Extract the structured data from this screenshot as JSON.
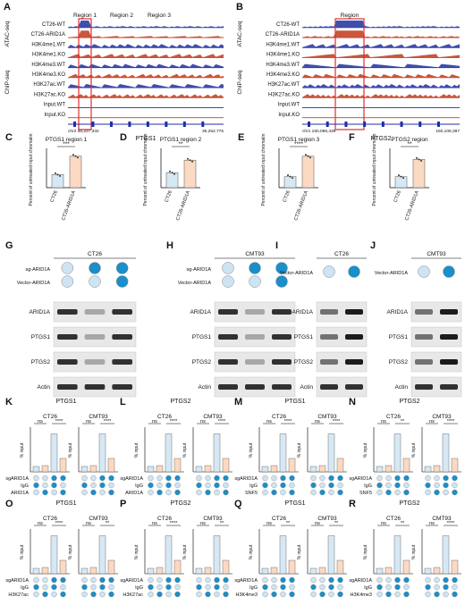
{
  "panels": {
    "A": {
      "letter": "A",
      "group_atac": "ATAC-seq",
      "group_chip": "ChIP-seq",
      "tracks": [
        "CT26-WT",
        "CT26-ARID1A",
        "H3K4me1.WT",
        "H3K4me1.KO",
        "H3K4me3.WT",
        "H3K4me3.KO",
        "H3K27ac.WT",
        "H3K27ac.KO",
        "Input.WT",
        "Input.KO"
      ],
      "regions": [
        "Region 1",
        "Region 2",
        "Region 3"
      ],
      "coord_left": "chr2 36,227,332",
      "coord_right": "36,252,775",
      "gene": "PTGS1"
    },
    "B": {
      "letter": "B",
      "group_atac": "ATAC-seq",
      "group_chip": "ChIP-seq",
      "tracks": [
        "CT26-WT",
        "CT26-ARID1A",
        "H3K4me1.WT",
        "H3K4me1.KO",
        "H3K4me3.WT",
        "H3K4me3.KO",
        "H3K27ac.WT",
        "H3K27ac.KO",
        "Input.WT",
        "Input.KO"
      ],
      "regions": [
        "Region"
      ],
      "coord_left": "chr1 150,096,439",
      "coord_right": "150,108,397",
      "gene": "PTGS2"
    },
    "bars_cf": [
      {
        "letter": "C",
        "title": "PTGS1 region 1",
        "sig": "***",
        "ylabel": "Percent of untreated input chromatin",
        "cats": [
          "CT26",
          "CT26-ARID1A"
        ]
      },
      {
        "letter": "D",
        "title": "PTGS1 region 2",
        "sig": "**",
        "ylabel": "Percent of untreated input chromatin",
        "cats": [
          "CT26",
          "CT26-ARID1A"
        ]
      },
      {
        "letter": "E",
        "title": "PTGS1 region 3",
        "sig": "****",
        "ylabel": "Percent of untreated input chromatin",
        "cats": [
          "CT26",
          "CT26-ARID1A"
        ]
      },
      {
        "letter": "F",
        "title": "PTGS2 region",
        "sig": "**",
        "ylabel": "Percent of untreated input chromatin",
        "cats": [
          "CT26",
          "CT26-ARID1A"
        ]
      }
    ],
    "blots": [
      {
        "letter": "G",
        "cell": "CT26",
        "rows": [
          "sg-ARID1A",
          "Vector-ARID1A"
        ],
        "bands": [
          "ARID1A",
          "PTGS1",
          "PTGS2",
          "Actin"
        ]
      },
      {
        "letter": "H",
        "cell": "CMT93",
        "rows": [
          "sg-ARID1A",
          "Vector-ARID1A"
        ],
        "bands": [
          "ARID1A",
          "PTGS1",
          "PTGS2",
          "Actin"
        ]
      },
      {
        "letter": "I",
        "cell": "CT26",
        "rows": [
          "Vector-ARID1A"
        ],
        "bands": [
          "ARID1A",
          "PTGS1",
          "PTGS2",
          "Actin"
        ]
      },
      {
        "letter": "J",
        "cell": "CMT93",
        "rows": [
          "Vector-ARID1A"
        ],
        "bands": [
          "ARID1A",
          "PTGS1",
          "PTGS2",
          "Actin"
        ]
      }
    ],
    "chip_panels": [
      {
        "letter": "K",
        "gene": "PTGS1",
        "sig1": [
          "ns",
          "****"
        ],
        "sig2": [
          "ns",
          "****"
        ],
        "ab": "ARID1A"
      },
      {
        "letter": "L",
        "gene": "PTGS2",
        "sig1": [
          "ns",
          "****"
        ],
        "sig2": [
          "ns",
          "****"
        ],
        "ab": "ARID1A"
      },
      {
        "letter": "M",
        "gene": "PTGS1",
        "sig1": [
          "ns",
          "****"
        ],
        "sig2": [
          "ns",
          "****"
        ],
        "ab": "SNF5"
      },
      {
        "letter": "N",
        "gene": "PTGS2",
        "sig1": [
          "ns",
          "**"
        ],
        "sig2": [
          "ns",
          "****"
        ],
        "ab": "SNF5"
      },
      {
        "letter": "O",
        "gene": "PTGS1",
        "sig1": [
          "ns",
          "****"
        ],
        "sig2": [
          "ns",
          "**"
        ],
        "ab": "H3K27ac"
      },
      {
        "letter": "P",
        "gene": "PTGS2",
        "sig1": [
          "ns",
          "****"
        ],
        "sig2": [
          "ns",
          "**"
        ],
        "ab": "H3K27ac"
      },
      {
        "letter": "Q",
        "gene": "PTGS1",
        "sig1": [
          "ns",
          "**"
        ],
        "sig2": [
          "ns",
          "**"
        ],
        "ab": "H3K4me3"
      },
      {
        "letter": "R",
        "gene": "PTGS2",
        "sig1": [
          "ns",
          "**"
        ],
        "sig2": [
          "ns",
          "****"
        ],
        "ab": "H3K4me3"
      }
    ],
    "chip_common": {
      "cell1": "CT26",
      "cell2": "CMT93",
      "ylabel": "% input",
      "row1": "sgARID1A",
      "row2": "IgG"
    }
  },
  "colors": {
    "wt": "#d6e8f4",
    "ko": "#fbd9c2",
    "blue": "#1f2fa0",
    "red": "#c0391b",
    "dot": "#1a8fc9",
    "box": "#e03030"
  },
  "chart_data": [
    {
      "type": "bar",
      "title": "PTGS1 region 1",
      "categories": [
        "CT26",
        "CT26-ARID1A"
      ],
      "values": [
        10,
        24
      ],
      "ylim": [
        0,
        30
      ],
      "ylabel": "Percent of untreated input chromatin"
    },
    {
      "type": "bar",
      "title": "PTGS1 region 2",
      "categories": [
        "CT26",
        "CT26-ARID1A"
      ],
      "values": [
        19,
        35
      ],
      "ylim": [
        0,
        50
      ],
      "ylabel": "Percent of untreated input chromatin"
    },
    {
      "type": "bar",
      "title": "PTGS1 region 3",
      "categories": [
        "CT26",
        "CT26-ARID1A"
      ],
      "values": [
        14,
        40
      ],
      "ylim": [
        0,
        50
      ],
      "ylabel": "Percent of untreated input chromatin"
    },
    {
      "type": "bar",
      "title": "PTGS2 region",
      "categories": [
        "CT26",
        "CT26-ARID1A"
      ],
      "values": [
        14,
        36
      ],
      "ylim": [
        0,
        50
      ],
      "ylabel": "Percent of untreated input chromatin"
    }
  ]
}
